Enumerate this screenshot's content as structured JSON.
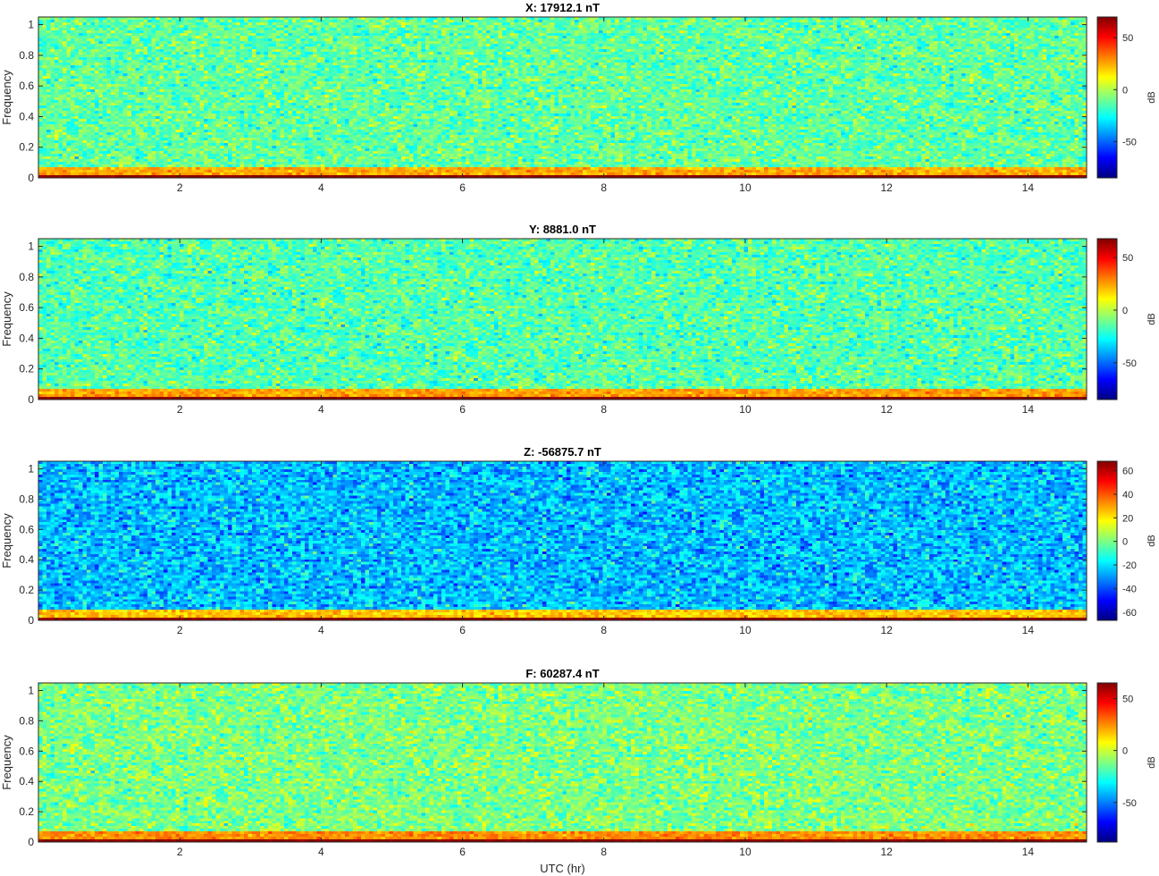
{
  "chart_data": [
    {
      "type": "heatmap",
      "title": "X: 17912.1 nT",
      "ylabel": "Frequency",
      "xlabel": "",
      "xlim": [
        0,
        14.83
      ],
      "ylim": [
        0,
        1.05
      ],
      "x_ticks": [
        2,
        4,
        6,
        8,
        10,
        12,
        14
      ],
      "x_tick_labels": [
        "2",
        "4",
        "6",
        "8",
        "10",
        "12",
        "14"
      ],
      "y_ticks": [
        0,
        0.2,
        0.4,
        0.6,
        0.8,
        1
      ],
      "y_tick_labels": [
        "0",
        "0.2",
        "0.4",
        "0.6",
        "0.8",
        "1"
      ],
      "colorbar": {
        "label": "dB",
        "clim": [
          -85,
          70
        ],
        "ticks": [
          -50,
          0,
          50
        ],
        "tick_labels": [
          "-50",
          "0",
          "50"
        ]
      },
      "colormap": "jet",
      "background_level_db": -12,
      "low_freq_band_level_db": 25,
      "lowest_bin_level_db": 70
    },
    {
      "type": "heatmap",
      "title": "Y: 8881.0 nT",
      "ylabel": "Frequency",
      "xlabel": "",
      "xlim": [
        0,
        14.83
      ],
      "ylim": [
        0,
        1.05
      ],
      "x_ticks": [
        2,
        4,
        6,
        8,
        10,
        12,
        14
      ],
      "x_tick_labels": [
        "2",
        "4",
        "6",
        "8",
        "10",
        "12",
        "14"
      ],
      "y_ticks": [
        0,
        0.2,
        0.4,
        0.6,
        0.8,
        1
      ],
      "y_tick_labels": [
        "0",
        "0.2",
        "0.4",
        "0.6",
        "0.8",
        "1"
      ],
      "colorbar": {
        "label": "dB",
        "clim": [
          -85,
          68
        ],
        "ticks": [
          -50,
          0,
          50
        ],
        "tick_labels": [
          "-50",
          "0",
          "50"
        ]
      },
      "colormap": "jet",
      "background_level_db": -15,
      "low_freq_band_level_db": 25,
      "lowest_bin_level_db": 68
    },
    {
      "type": "heatmap",
      "title": "Z: -56875.7 nT",
      "ylabel": "Frequency",
      "xlabel": "",
      "xlim": [
        0,
        14.83
      ],
      "ylim": [
        0,
        1.05
      ],
      "x_ticks": [
        2,
        4,
        6,
        8,
        10,
        12,
        14
      ],
      "x_tick_labels": [
        "2",
        "4",
        "6",
        "8",
        "10",
        "12",
        "14"
      ],
      "y_ticks": [
        0,
        0.2,
        0.4,
        0.6,
        0.8,
        1
      ],
      "y_tick_labels": [
        "0",
        "0.2",
        "0.4",
        "0.6",
        "0.8",
        "1"
      ],
      "colorbar": {
        "label": "dB",
        "clim": [
          -67,
          68
        ],
        "ticks": [
          -60,
          -40,
          -20,
          0,
          20,
          40,
          60
        ],
        "tick_labels": [
          "-60",
          "-40",
          "-20",
          "0",
          "20",
          "40",
          "60"
        ]
      },
      "colormap": "jet",
      "background_level_db": -25,
      "low_freq_band_level_db": 25,
      "lowest_bin_level_db": 68
    },
    {
      "type": "heatmap",
      "title": "F: 60287.4 nT",
      "ylabel": "Frequency",
      "xlabel": "UTC (hr)",
      "xlim": [
        0,
        14.83
      ],
      "ylim": [
        0,
        1.05
      ],
      "x_ticks": [
        2,
        4,
        6,
        8,
        10,
        12,
        14
      ],
      "x_tick_labels": [
        "2",
        "4",
        "6",
        "8",
        "10",
        "12",
        "14"
      ],
      "y_ticks": [
        0,
        0.2,
        0.4,
        0.6,
        0.8,
        1
      ],
      "y_tick_labels": [
        "0",
        "0.2",
        "0.4",
        "0.6",
        "0.8",
        "1"
      ],
      "colorbar": {
        "label": "dB",
        "clim": [
          -88,
          65
        ],
        "ticks": [
          -50,
          0,
          50
        ],
        "tick_labels": [
          "-50",
          "0",
          "50"
        ]
      },
      "colormap": "jet",
      "background_level_db": -12,
      "low_freq_band_level_db": 25,
      "lowest_bin_level_db": 65
    }
  ]
}
